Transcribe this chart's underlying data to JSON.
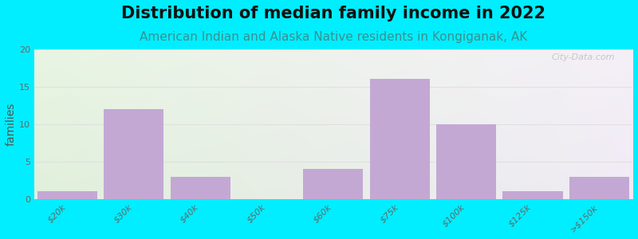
{
  "title": "Distribution of median family income in 2022",
  "subtitle": "American Indian and Alaska Native residents in Kongiganak, AK",
  "ylabel": "families",
  "categories": [
    "$20k",
    "$30k",
    "$40k",
    "$50k",
    "$60k",
    "$75k",
    "$100k",
    "$125k",
    ">$150k"
  ],
  "values": [
    1,
    12,
    3,
    0,
    4,
    16,
    10,
    1,
    3
  ],
  "bar_color": "#c4a8d4",
  "bar_edge_color": "#b090c0",
  "ylim": [
    0,
    20
  ],
  "yticks": [
    0,
    5,
    10,
    15,
    20
  ],
  "background_outer": "#00eeff",
  "bg_top_left": "#e8f5e4",
  "bg_top_right": "#f5f0f8",
  "bg_bottom_left": "#dff0da",
  "bg_bottom_right": "#ede8f2",
  "title_fontsize": 15,
  "subtitle_fontsize": 11,
  "subtitle_color": "#3a9090",
  "ylabel_fontsize": 10,
  "tick_label_fontsize": 8,
  "watermark": "City-Data.com",
  "grid_color": "#dddddd"
}
